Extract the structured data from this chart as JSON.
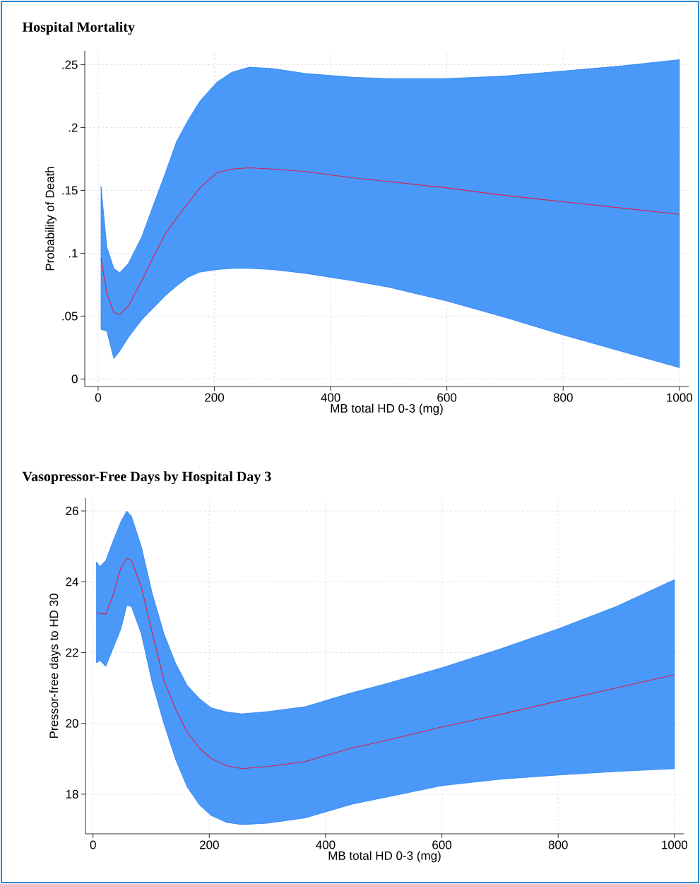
{
  "chart_data": [
    {
      "type": "line",
      "title": "Hospital Mortality",
      "xlabel": "MB total HD 0-3 (mg)",
      "ylabel": "Probability of Death",
      "xlim": [
        -23,
        1016
      ],
      "ylim": [
        -0.006,
        0.261
      ],
      "xticks": [
        0,
        200,
        400,
        600,
        800,
        1000
      ],
      "yticks": [
        {
          "value": 0,
          "label": "0"
        },
        {
          "value": 0.05,
          "label": ".05"
        },
        {
          "value": 0.1,
          "label": ".1"
        },
        {
          "value": 0.15,
          "label": ".15"
        },
        {
          "value": 0.2,
          "label": ".2"
        },
        {
          "value": 0.25,
          "label": ".25"
        }
      ],
      "grid": true,
      "series": [
        {
          "color": "#d8214e",
          "x": [
            5,
            15,
            27,
            37,
            52,
            75,
            94,
            115,
            135,
            155,
            175,
            204,
            230,
            260,
            300,
            357,
            439,
            500,
            600,
            700,
            800,
            900,
            1000
          ],
          "values": [
            0.096,
            0.068,
            0.053,
            0.051,
            0.058,
            0.078,
            0.096,
            0.115,
            0.128,
            0.14,
            0.152,
            0.164,
            0.167,
            0.168,
            0.167,
            0.165,
            0.16,
            0.157,
            0.152,
            0.146,
            0.141,
            0.136,
            0.131
          ],
          "upper": [
            0.153,
            0.105,
            0.088,
            0.0845,
            0.092,
            0.113,
            0.137,
            0.163,
            0.189,
            0.206,
            0.221,
            0.236,
            0.244,
            0.248,
            0.247,
            0.243,
            0.24,
            0.239,
            0.239,
            0.241,
            0.245,
            0.249,
            0.254
          ],
          "lower": [
            0.0395,
            0.038,
            0.0163,
            0.022,
            0.033,
            0.047,
            0.056,
            0.066,
            0.074,
            0.081,
            0.085,
            0.087,
            0.088,
            0.088,
            0.087,
            0.084,
            0.078,
            0.073,
            0.062,
            0.049,
            0.035,
            0.022,
            0.009
          ]
        }
      ]
    },
    {
      "type": "line",
      "title": "Vasopressor-Free Days by Hospital Day 3",
      "xlabel": "MB total HD 0-3 (mg)",
      "ylabel": "Pressor-free days to HD 30",
      "xlim": [
        -13,
        1016
      ],
      "ylim": [
        16.88,
        26.36
      ],
      "xticks": [
        0,
        200,
        400,
        600,
        800,
        1000
      ],
      "yticks": [
        18,
        20,
        22,
        24,
        26
      ],
      "grid": true,
      "series": [
        {
          "color": "#d8214e",
          "x": [
            6,
            12,
            22,
            34,
            48,
            58,
            66,
            83,
            102,
            122,
            142,
            162,
            183,
            203,
            230,
            256,
            300,
            365,
            446,
            500,
            600,
            700,
            800,
            900,
            1000
          ],
          "values": [
            23.13,
            23.1,
            23.09,
            23.6,
            24.4,
            24.66,
            24.6,
            23.86,
            22.55,
            21.21,
            20.4,
            19.75,
            19.3,
            19.01,
            18.8,
            18.72,
            18.78,
            18.92,
            19.31,
            19.5,
            19.9,
            20.25,
            20.63,
            21.0,
            21.37
          ],
          "upper": [
            24.56,
            24.43,
            24.6,
            25.13,
            25.7,
            26.0,
            25.85,
            25.0,
            23.66,
            22.53,
            21.7,
            21.07,
            20.7,
            20.44,
            20.32,
            20.27,
            20.33,
            20.47,
            20.87,
            21.1,
            21.57,
            22.1,
            22.67,
            23.3,
            24.06
          ],
          "lower": [
            21.71,
            21.77,
            21.61,
            22.1,
            22.67,
            23.33,
            23.3,
            22.53,
            21.13,
            19.99,
            18.98,
            18.2,
            17.7,
            17.4,
            17.2,
            17.14,
            17.18,
            17.33,
            17.72,
            17.9,
            18.24,
            18.42,
            18.54,
            18.64,
            18.72
          ]
        }
      ]
    }
  ]
}
